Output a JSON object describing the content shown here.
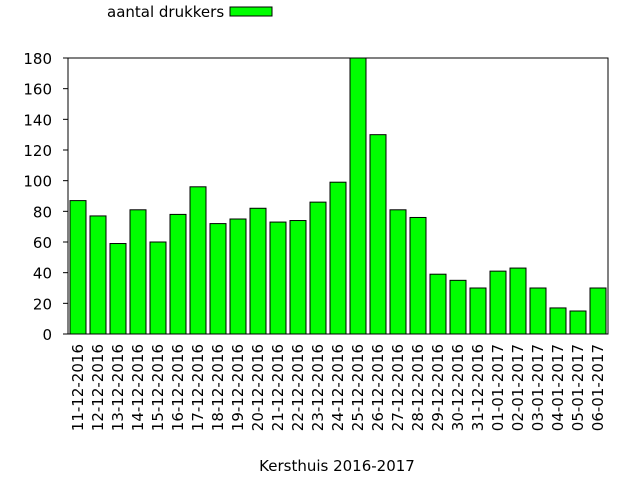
{
  "chart_data": {
    "type": "bar",
    "title": "",
    "xlabel": "Kersthuis 2016-2017",
    "ylabel": "",
    "ylim": [
      0,
      180
    ],
    "yticks": [
      0,
      20,
      40,
      60,
      80,
      100,
      120,
      140,
      160,
      180
    ],
    "grid": false,
    "legend_position": "top-left",
    "bar_color": "#00ff00",
    "categories": [
      "11-12-2016",
      "12-12-2016",
      "13-12-2016",
      "14-12-2016",
      "15-12-2016",
      "16-12-2016",
      "17-12-2016",
      "18-12-2016",
      "19-12-2016",
      "20-12-2016",
      "21-12-2016",
      "22-12-2016",
      "23-12-2016",
      "24-12-2016",
      "25-12-2016",
      "26-12-2016",
      "27-12-2016",
      "28-12-2016",
      "29-12-2016",
      "30-12-2016",
      "31-12-2016",
      "01-01-2017",
      "02-01-2017",
      "03-01-2017",
      "04-01-2017",
      "05-01-2017",
      "06-01-2017"
    ],
    "series": [
      {
        "name": "aantal drukkers",
        "values": [
          87,
          77,
          59,
          81,
          60,
          78,
          96,
          72,
          75,
          82,
          73,
          74,
          86,
          99,
          180,
          130,
          81,
          76,
          39,
          35,
          30,
          41,
          43,
          30,
          17,
          15,
          30
        ]
      }
    ]
  }
}
